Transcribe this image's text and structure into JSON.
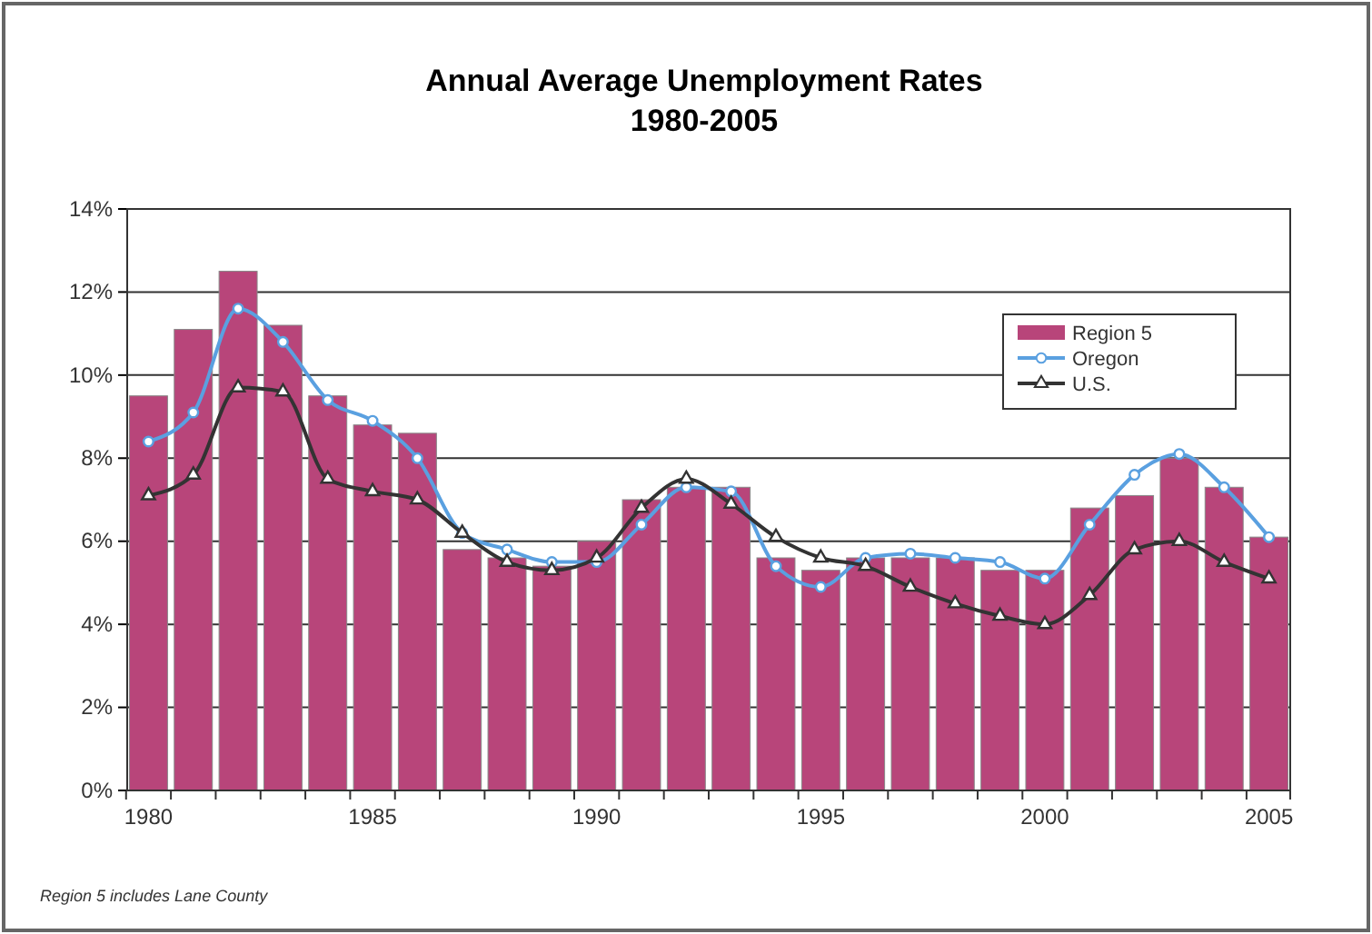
{
  "chart_data": {
    "type": "bar",
    "title": "Annual Average Unemployment Rates",
    "subtitle": "1980-2005",
    "categories": [
      "1980",
      null,
      null,
      null,
      null,
      "1985",
      null,
      null,
      null,
      null,
      "1990",
      null,
      null,
      null,
      null,
      "1995",
      null,
      null,
      null,
      null,
      "2000",
      null,
      null,
      null,
      null,
      "2005"
    ],
    "series": [
      {
        "name": "Region 5",
        "color": "#b8457a",
        "values": [
          9.5,
          11.1,
          12.5,
          11.2,
          9.5,
          8.8,
          8.6,
          5.8,
          5.6,
          5.4,
          6.0,
          7.0,
          7.3,
          7.3,
          5.6,
          5.3,
          5.6,
          5.6,
          5.6,
          5.3,
          5.3,
          6.8,
          7.1,
          8.0,
          7.3,
          6.1
        ]
      },
      {
        "name": "Oregon",
        "type": "line",
        "color": "#5aa0e0",
        "marker": "circle",
        "values": [
          8.4,
          9.1,
          11.6,
          10.8,
          9.4,
          8.9,
          8.0,
          6.2,
          5.8,
          5.5,
          5.5,
          6.4,
          7.3,
          7.2,
          5.4,
          4.9,
          5.6,
          5.7,
          5.6,
          5.5,
          5.1,
          6.4,
          7.6,
          8.1,
          7.3,
          6.1
        ]
      },
      {
        "name": "U.S.",
        "type": "line",
        "color": "#333333",
        "marker": "triangle",
        "values": [
          7.1,
          7.6,
          9.7,
          9.6,
          7.5,
          7.2,
          7.0,
          6.2,
          5.5,
          5.3,
          5.6,
          6.8,
          7.5,
          6.9,
          6.1,
          5.6,
          5.4,
          4.9,
          4.5,
          4.2,
          4.0,
          4.7,
          5.8,
          6.0,
          5.5,
          5.1
        ]
      }
    ],
    "ylim": [
      0,
      14
    ],
    "yticks": [
      {
        "value": 0,
        "label": "0%"
      },
      {
        "value": 2,
        "label": "2%"
      },
      {
        "value": 4,
        "label": "4%"
      },
      {
        "value": 6,
        "label": "6%"
      },
      {
        "value": 8,
        "label": "8%"
      },
      {
        "value": 10,
        "label": "10%"
      },
      {
        "value": 12,
        "label": "12%"
      },
      {
        "value": 14,
        "label": "14%"
      }
    ],
    "grid": "y",
    "legend": "top right",
    "annotations": [
      "Region 5 includes Lane County"
    ]
  }
}
